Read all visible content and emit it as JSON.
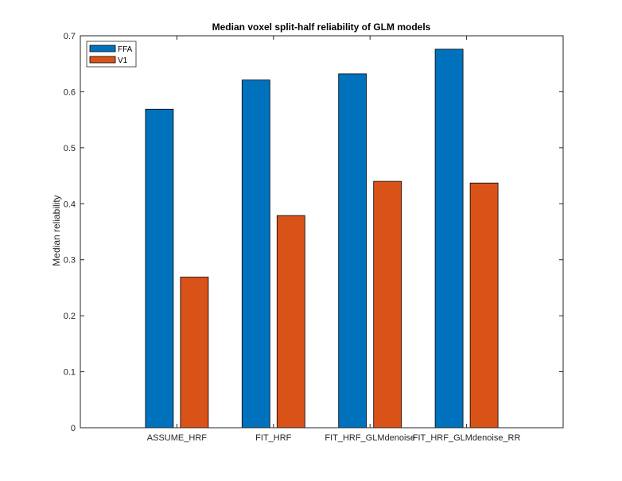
{
  "chart_data": {
    "type": "bar",
    "title": "Median voxel split-half reliability of GLM models",
    "xlabel": "",
    "ylabel": "Median reliability",
    "categories": [
      "ASSUME_HRF",
      "FIT_HRF",
      "FIT_HRF_GLMdenoise",
      "FIT_HRF_GLMdenoise_RR"
    ],
    "series": [
      {
        "name": "FFA",
        "color": "#0072bd",
        "values": [
          0.569,
          0.621,
          0.632,
          0.676
        ]
      },
      {
        "name": "V1",
        "color": "#d95319",
        "values": [
          0.269,
          0.379,
          0.44,
          0.437
        ]
      }
    ],
    "ylim": [
      0,
      0.7
    ],
    "yticks": [
      0,
      0.1,
      0.2,
      0.3,
      0.4,
      0.5,
      0.6,
      0.7
    ],
    "ytick_labels": [
      "0",
      "0.1",
      "0.2",
      "0.3",
      "0.4",
      "0.5",
      "0.6",
      "0.7"
    ],
    "grid": false,
    "legend_position": "top-left"
  }
}
